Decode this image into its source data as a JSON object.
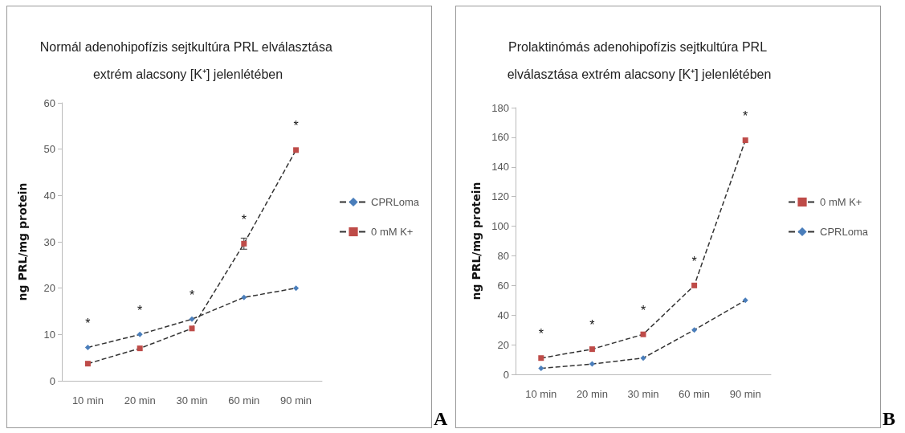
{
  "chart_data": [
    {
      "type": "line",
      "title": "Normál adenohipofízis sejtkultúra PRL elválasztása extrém alacsony [K⁺] jelenlétében",
      "ylabel": "ng PRL/mg protein",
      "categories": [
        "10 min",
        "20 min",
        "30 min",
        "60 min",
        "90 min"
      ],
      "ylim": [
        0,
        60
      ],
      "yticks": [
        0,
        10,
        20,
        30,
        40,
        50,
        60
      ],
      "grid": false,
      "legend": "right",
      "line_style": "dashed",
      "series": [
        {
          "name": "CPRLoma",
          "color": "#4a7ebb",
          "marker": "diamond",
          "values": [
            7.2,
            10,
            13.3,
            18,
            20
          ]
        },
        {
          "name": "0 mM K+",
          "color": "#be4b48",
          "marker": "square",
          "values": [
            3.7,
            7,
            11.3,
            29.6,
            49.8
          ],
          "errors": [
            null,
            null,
            null,
            1.2,
            null
          ]
        }
      ],
      "annotations": [
        {
          "text": "*",
          "x": "10 min",
          "y": 7.2
        },
        {
          "text": "*",
          "x": "20 min",
          "y": 10
        },
        {
          "text": "*",
          "x": "30 min",
          "y": 13.3
        },
        {
          "text": "*",
          "x": "60 min",
          "y": 29.6
        },
        {
          "text": "*",
          "x": "90 min",
          "y": 49.8
        },
        "A"
      ]
    },
    {
      "type": "line",
      "title": "Prolaktinómás adenohipofízis sejtkultúra PRL elválasztása extrém alacsony [K⁺] jelenlétében",
      "ylabel": "ng PRL/mg protein",
      "categories": [
        "10 min",
        "20 min",
        "30 min",
        "60 min",
        "90 min"
      ],
      "ylim": [
        0,
        180
      ],
      "yticks": [
        0,
        20,
        40,
        60,
        80,
        100,
        120,
        140,
        160,
        180
      ],
      "grid": false,
      "legend": "right",
      "line_style": "dashed",
      "series": [
        {
          "name": "0 mM K+",
          "color": "#be4b48",
          "marker": "square",
          "values": [
            11,
            17,
            27,
            60,
            158
          ]
        },
        {
          "name": "CPRLoma",
          "color": "#4a7ebb",
          "marker": "diamond",
          "values": [
            4,
            7,
            11,
            30,
            50
          ]
        }
      ],
      "annotations": [
        {
          "text": "*",
          "x": "10 min",
          "y": 11
        },
        {
          "text": "*",
          "x": "20 min",
          "y": 17
        },
        {
          "text": "*",
          "x": "30 min",
          "y": 27
        },
        {
          "text": "*",
          "x": "60 min",
          "y": 60
        },
        {
          "text": "*",
          "x": "90 min",
          "y": 158
        },
        "B"
      ]
    }
  ]
}
